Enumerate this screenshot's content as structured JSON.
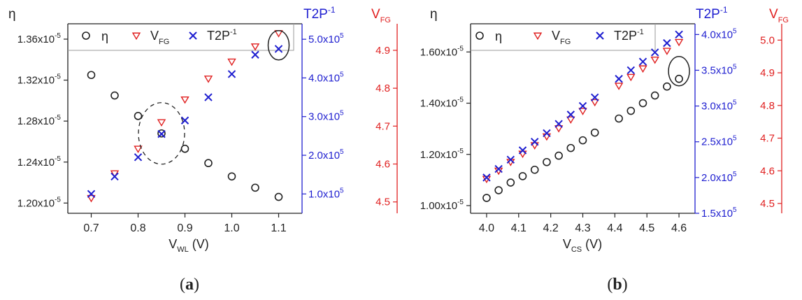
{
  "colors": {
    "eta": "#222222",
    "vfg": "#e02020",
    "t2p": "#1f1fd0",
    "frame": "#222222",
    "ellipse": "#222222"
  },
  "legend": {
    "eta": "η",
    "vfg_main": "V",
    "vfg_sub": "FG",
    "t2p_main": "T2P",
    "t2p_sup": "-1"
  },
  "chart_data": [
    {
      "type": "scatter",
      "caption": {
        "open": "(",
        "letter": "a",
        "close": ")"
      },
      "xlabel_main": "V",
      "xlabel_sub": "WL",
      "xlabel_unit": " (V)",
      "xlim": [
        0.65,
        1.15
      ],
      "x_ticks": [
        0.7,
        0.8,
        0.9,
        1.0,
        1.1
      ],
      "x_tick_labels": [
        "0.7",
        "0.8",
        "0.9",
        "1.0",
        "1.1"
      ],
      "x": [
        0.7,
        0.75,
        0.8,
        0.85,
        0.9,
        0.95,
        1.0,
        1.05,
        1.1
      ],
      "axes": {
        "eta": {
          "label": "η",
          "lim": [
            1.19e-05,
            1.375e-05
          ],
          "ticks": [
            1.2e-05,
            1.24e-05,
            1.28e-05,
            1.32e-05,
            1.36e-05
          ],
          "tick_labels": [
            "1.20x10",
            "1.24x10",
            "1.28x10",
            "1.32x10",
            "1.36x10"
          ],
          "tick_exp": "-5"
        },
        "t2p": {
          "label_main": "T2P",
          "label_sup": "-1",
          "lim": [
            50000,
            540000
          ],
          "ticks": [
            100000,
            200000,
            300000,
            400000,
            500000
          ],
          "tick_labels": [
            "1.0x10",
            "2.0x10",
            "3.0x10",
            "4.0x10",
            "5.0x10"
          ],
          "tick_exp": "5"
        },
        "vfg": {
          "label_main": "V",
          "label_sub": "FG",
          "lim": [
            4.47,
            4.97
          ],
          "ticks": [
            4.5,
            4.6,
            4.7,
            4.8,
            4.9
          ],
          "tick_labels": [
            "4.5",
            "4.6",
            "4.7",
            "4.8",
            "4.9"
          ]
        }
      },
      "series": [
        {
          "name": "η",
          "values": [
            1.325e-05,
            1.305e-05,
            1.285e-05,
            1.268e-05,
            1.253e-05,
            1.239e-05,
            1.226e-05,
            1.215e-05,
            1.206e-05
          ]
        },
        {
          "name": "VFG",
          "values": [
            4.51,
            4.575,
            4.64,
            4.71,
            4.77,
            4.825,
            4.87,
            4.91,
            4.945
          ]
        },
        {
          "name": "T2P-1",
          "values": [
            100000,
            145000,
            195000,
            255000,
            290000,
            350000,
            410000,
            460000,
            475000
          ]
        }
      ],
      "annotations": [
        {
          "type": "dashed-ellipse",
          "x": 0.85,
          "eta": 1.268e-05
        },
        {
          "type": "solid-ellipse",
          "x": 1.1,
          "eta": 1.354e-05
        }
      ]
    },
    {
      "type": "scatter",
      "caption": {
        "open": "(",
        "letter": "b",
        "close": ")"
      },
      "xlabel_main": "V",
      "xlabel_sub": "CS",
      "xlabel_unit": " (V)",
      "xlim": [
        3.95,
        4.65
      ],
      "x_ticks": [
        4.0,
        4.1,
        4.2,
        4.3,
        4.4,
        4.5,
        4.6
      ],
      "x_tick_labels": [
        "4.0",
        "4.1",
        "4.2",
        "4.3",
        "4.4",
        "4.5",
        "4.6"
      ],
      "x": [
        4.0,
        4.0375,
        4.075,
        4.1125,
        4.15,
        4.1875,
        4.225,
        4.2625,
        4.3,
        4.3375,
        4.4125,
        4.45,
        4.4875,
        4.525,
        4.5625,
        4.6
      ],
      "axes": {
        "eta": {
          "label": "η",
          "lim": [
            9.7e-06,
            1.71e-05
          ],
          "ticks": [
            1e-05,
            1.2e-05,
            1.4e-05,
            1.6e-05
          ],
          "tick_labels": [
            "1.00x10",
            "1.20x10",
            "1.40x10",
            "1.60x10"
          ],
          "tick_exp": "-5"
        },
        "t2p": {
          "label_main": "T2P",
          "label_sup": "-1",
          "lim": [
            150000,
            415000
          ],
          "ticks": [
            150000,
            200000,
            250000,
            300000,
            350000,
            400000
          ],
          "tick_labels": [
            "1.5x10",
            "2.0x10",
            "2.5x10",
            "3.0x10",
            "3.5x10",
            "4.0x10"
          ],
          "tick_exp": "5"
        },
        "vfg": {
          "label_main": "V",
          "label_sub": "FG",
          "lim": [
            4.47,
            5.05
          ],
          "ticks": [
            4.5,
            4.6,
            4.7,
            4.8,
            4.9,
            5.0
          ],
          "tick_labels": [
            "4.5",
            "4.6",
            "4.7",
            "4.8",
            "4.9",
            "5.0"
          ]
        }
      },
      "series": [
        {
          "name": "η",
          "values": [
            1.03e-05,
            1.06e-05,
            1.09e-05,
            1.115e-05,
            1.14e-05,
            1.17e-05,
            1.195e-05,
            1.225e-05,
            1.255e-05,
            1.285e-05,
            1.34e-05,
            1.37e-05,
            1.4e-05,
            1.43e-05,
            1.465e-05,
            1.495e-05
          ]
        },
        {
          "name": "VFG",
          "values": [
            4.575,
            4.6,
            4.627,
            4.652,
            4.678,
            4.705,
            4.73,
            4.757,
            4.783,
            4.81,
            4.86,
            4.887,
            4.913,
            4.94,
            4.967,
            4.994
          ]
        },
        {
          "name": "T2P-1",
          "values": [
            200000,
            212000,
            225000,
            238000,
            250000,
            262000,
            275000,
            288000,
            300000,
            312000,
            338000,
            350000,
            362000,
            375000,
            388000,
            400000
          ]
        }
      ],
      "annotations": [
        {
          "type": "solid-ellipse",
          "x": 4.6,
          "eta": 1.525e-05
        }
      ]
    }
  ]
}
